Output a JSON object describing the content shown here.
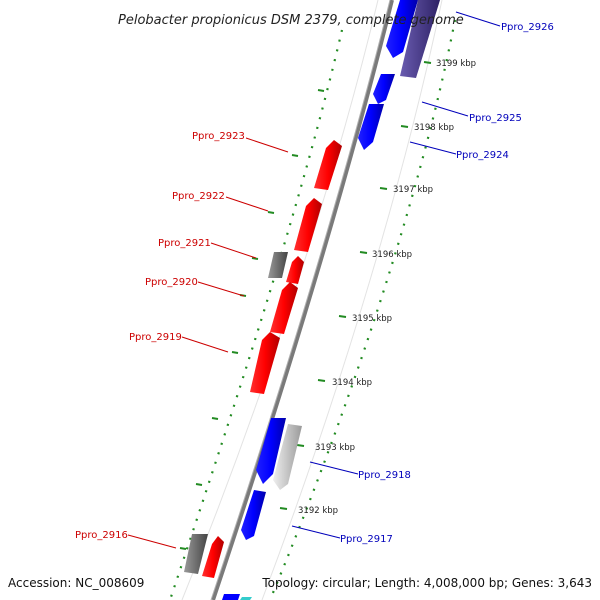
{
  "title": "Pelobacter propionicus DSM 2379, complete genome",
  "footer": {
    "accession": "Accession: NC_008609",
    "summary": "Topology: circular; Length: 4,008,000 bp; Genes: 3,643"
  },
  "ticks": [
    "3192 kbp",
    "3193 kbp",
    "3194 kbp",
    "3195 kbp",
    "3196 kbp",
    "3197 kbp",
    "3198 kbp",
    "3199 kbp"
  ],
  "genes_forward": [
    "Ppro_2926",
    "Ppro_2925",
    "Ppro_2924",
    "Ppro_2918",
    "Ppro_2917"
  ],
  "genes_reverse": [
    "Ppro_2923",
    "Ppro_2922",
    "Ppro_2921",
    "Ppro_2920",
    "Ppro_2919",
    "Ppro_2916"
  ],
  "colors": {
    "forward": "#0000ff",
    "reverse": "#ff0000",
    "dark_forward": "#4b3c8c",
    "gray": "#666666",
    "light_gray": "#c8c8c8",
    "backbone": "#808080",
    "dots": "#228b22"
  }
}
